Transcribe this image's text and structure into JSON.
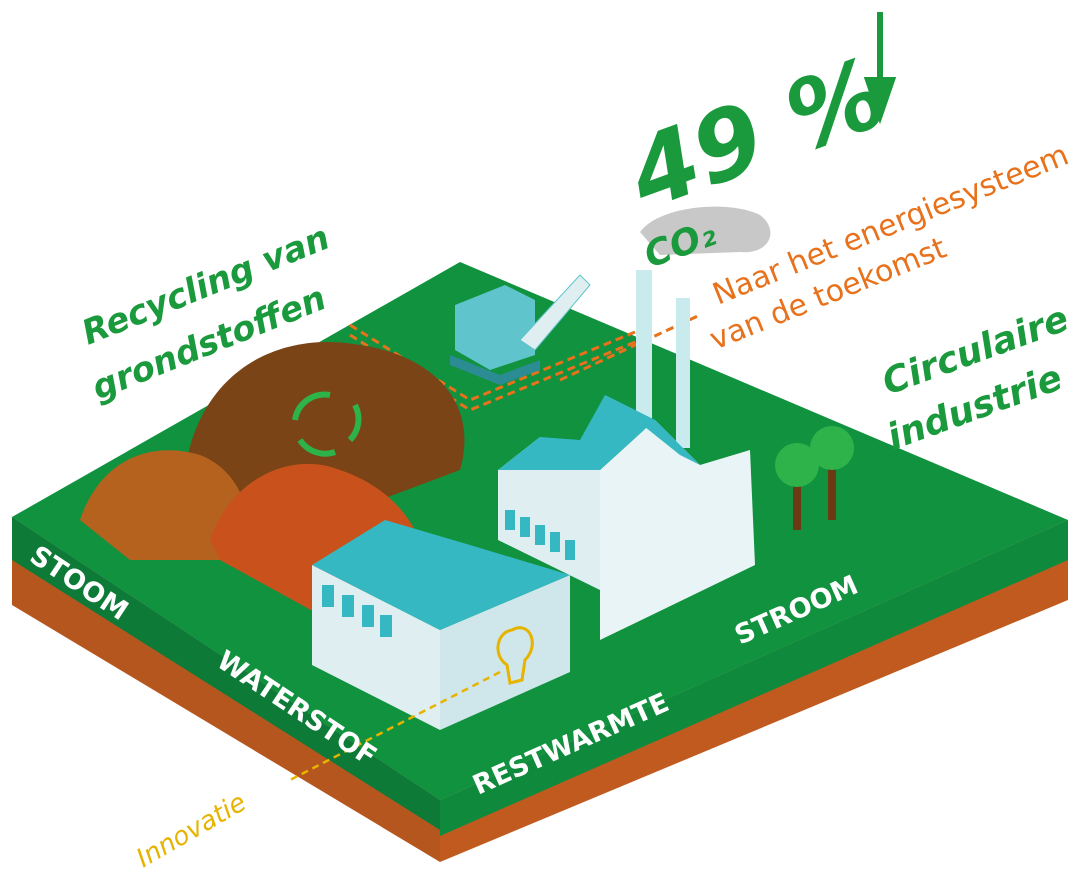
{
  "labels": {
    "recycling": [
      "Recycling van",
      "grondstoffen"
    ],
    "percentage": "49 %",
    "co2": "CO₂",
    "future": [
      "Naar het energiesysteem",
      "van de toekomst"
    ],
    "circular": [
      "Circulaire",
      "industrie"
    ],
    "innovation": "Innovatie"
  },
  "side_labels": {
    "left": [
      "STOOM",
      "WATERSTOF"
    ],
    "right": [
      "RESTWARMTE",
      "STROOM"
    ]
  }
}
